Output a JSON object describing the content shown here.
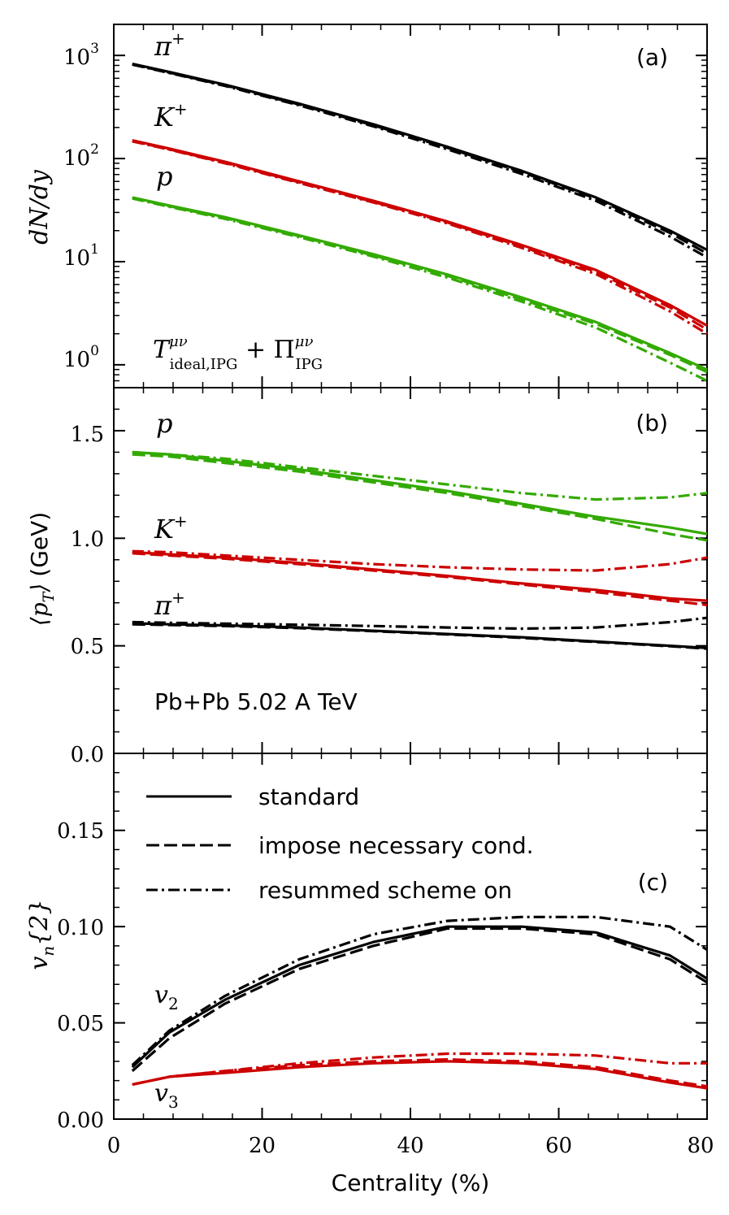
{
  "chart_data": [
    {
      "type": "line",
      "panel": "a",
      "tag": "(a)",
      "ylabel": "dN/dy",
      "yscale": "log",
      "ylim": [
        0.6,
        2000
      ],
      "xlim": [
        0,
        80
      ],
      "yticks": [
        {
          "value": 1,
          "label": "10",
          "exp": "0"
        },
        {
          "value": 10,
          "label": "10",
          "exp": "1"
        },
        {
          "value": 100,
          "label": "10",
          "exp": "2"
        },
        {
          "value": 1000,
          "label": "10",
          "exp": "3"
        }
      ],
      "annotation": {
        "main": "T",
        "sup1": "μν",
        "sub1": "ideal,IPG",
        "plus": " + Π",
        "sup2": "μν",
        "sub2": "IPG"
      },
      "x": [
        2.5,
        7.5,
        15,
        25,
        35,
        45,
        55,
        65,
        75,
        80
      ],
      "species": [
        {
          "label": "π",
          "sup": "+",
          "color": "#000000",
          "standard": [
            830,
            690,
            520,
            340,
            215,
            130,
            76,
            42,
            20,
            13
          ],
          "necessary": [
            820,
            682,
            512,
            334,
            210,
            127,
            74,
            41,
            19,
            12
          ],
          "resummed": [
            815,
            676,
            506,
            328,
            205,
            123,
            71,
            39,
            17.5,
            11
          ]
        },
        {
          "label": "K",
          "sup": "+",
          "color": "#cc0000",
          "standard": [
            150,
            125,
            93,
            60,
            39,
            24.5,
            14.5,
            8.3,
            3.8,
            2.4
          ],
          "necessary": [
            148,
            123,
            91,
            59,
            38,
            24,
            14,
            8,
            3.6,
            2.2
          ],
          "resummed": [
            147,
            122,
            90,
            58,
            37.5,
            23.5,
            13.6,
            7.6,
            3.3,
            2.0
          ]
        },
        {
          "label": "p",
          "sup": "",
          "color": "#33aa00",
          "standard": [
            42,
            35,
            27,
            18,
            11.8,
            7.5,
            4.5,
            2.6,
            1.3,
            0.9
          ],
          "necessary": [
            41.5,
            34.5,
            26.5,
            17.7,
            11.5,
            7.3,
            4.3,
            2.5,
            1.25,
            0.85
          ],
          "resummed": [
            41,
            34,
            26,
            17.3,
            11.2,
            7.0,
            4.1,
            2.3,
            1.05,
            0.7
          ]
        }
      ]
    },
    {
      "type": "line",
      "panel": "b",
      "tag": "(b)",
      "ylabel": "(GeV)",
      "ylabel_math": "⟨p",
      "ylabel_sub": "T",
      "ylabel_close": "⟩",
      "ylim": [
        0,
        1.7
      ],
      "xlim": [
        0,
        80
      ],
      "yticks": [
        {
          "value": 0.0,
          "label": "0.0"
        },
        {
          "value": 0.5,
          "label": "0.5"
        },
        {
          "value": 1.0,
          "label": "1.0"
        },
        {
          "value": 1.5,
          "label": "1.5"
        }
      ],
      "note": "Pb+Pb 5.02 A TeV",
      "x": [
        2.5,
        7.5,
        15,
        25,
        35,
        45,
        55,
        65,
        75,
        80
      ],
      "species": [
        {
          "label": "p",
          "sup": "",
          "color": "#33aa00",
          "standard": [
            1.4,
            1.39,
            1.36,
            1.32,
            1.27,
            1.22,
            1.16,
            1.1,
            1.05,
            1.02
          ],
          "necessary": [
            1.39,
            1.38,
            1.35,
            1.31,
            1.26,
            1.21,
            1.15,
            1.09,
            1.02,
            0.99
          ],
          "resummed": [
            1.4,
            1.39,
            1.37,
            1.33,
            1.29,
            1.25,
            1.21,
            1.18,
            1.19,
            1.21
          ]
        },
        {
          "label": "K",
          "sup": "+",
          "color": "#cc0000",
          "standard": [
            0.935,
            0.925,
            0.91,
            0.885,
            0.855,
            0.825,
            0.79,
            0.76,
            0.72,
            0.71
          ],
          "necessary": [
            0.93,
            0.92,
            0.905,
            0.88,
            0.85,
            0.82,
            0.785,
            0.75,
            0.71,
            0.69
          ],
          "resummed": [
            0.94,
            0.935,
            0.92,
            0.9,
            0.88,
            0.865,
            0.855,
            0.85,
            0.88,
            0.91
          ]
        },
        {
          "label": "π",
          "sup": "+",
          "color": "#000000",
          "standard": [
            0.605,
            0.6,
            0.595,
            0.585,
            0.57,
            0.555,
            0.54,
            0.52,
            0.5,
            0.49
          ],
          "necessary": [
            0.6,
            0.597,
            0.592,
            0.582,
            0.568,
            0.553,
            0.537,
            0.518,
            0.498,
            0.487
          ],
          "resummed": [
            0.61,
            0.607,
            0.603,
            0.598,
            0.592,
            0.585,
            0.58,
            0.585,
            0.61,
            0.63
          ]
        }
      ]
    },
    {
      "type": "line",
      "panel": "c",
      "tag": "(c)",
      "ylabel_math": "v",
      "ylabel_sub": "n",
      "ylabel_tail": "{2}",
      "ylim": [
        0,
        0.19
      ],
      "xlim": [
        0,
        80
      ],
      "xlabel": "Centrality (%)",
      "xticks": [
        {
          "value": 0,
          "label": "0"
        },
        {
          "value": 20,
          "label": "20"
        },
        {
          "value": 40,
          "label": "40"
        },
        {
          "value": 60,
          "label": "60"
        },
        {
          "value": 80,
          "label": "80"
        }
      ],
      "yticks": [
        {
          "value": 0.0,
          "label": "0.00"
        },
        {
          "value": 0.05,
          "label": "0.05"
        },
        {
          "value": 0.1,
          "label": "0.10"
        },
        {
          "value": 0.15,
          "label": "0.15"
        }
      ],
      "legend": [
        {
          "label": "standard",
          "style": "solid"
        },
        {
          "label": "impose necessary cond.",
          "style": "dashed"
        },
        {
          "label": "resummed scheme on",
          "style": "dashdot"
        }
      ],
      "x": [
        2.5,
        7.5,
        15,
        25,
        35,
        45,
        55,
        65,
        75,
        80
      ],
      "harmonics": [
        {
          "label": "v",
          "sub": "2",
          "color": "#000000",
          "standard": [
            0.027,
            0.045,
            0.062,
            0.08,
            0.092,
            0.1,
            0.1,
            0.097,
            0.085,
            0.073
          ],
          "necessary": [
            0.025,
            0.042,
            0.06,
            0.078,
            0.09,
            0.099,
            0.099,
            0.096,
            0.083,
            0.071
          ],
          "resummed": [
            0.028,
            0.046,
            0.064,
            0.083,
            0.096,
            0.103,
            0.105,
            0.105,
            0.1,
            0.088
          ]
        },
        {
          "label": "v",
          "sub": "3",
          "color": "#cc0000",
          "standard": [
            0.018,
            0.022,
            0.024,
            0.027,
            0.029,
            0.03,
            0.029,
            0.026,
            0.019,
            0.016
          ],
          "necessary": [
            0.018,
            0.022,
            0.025,
            0.028,
            0.03,
            0.031,
            0.03,
            0.027,
            0.02,
            0.017
          ],
          "resummed": [
            0.018,
            0.022,
            0.025,
            0.029,
            0.032,
            0.034,
            0.034,
            0.033,
            0.029,
            0.029
          ]
        }
      ]
    }
  ]
}
